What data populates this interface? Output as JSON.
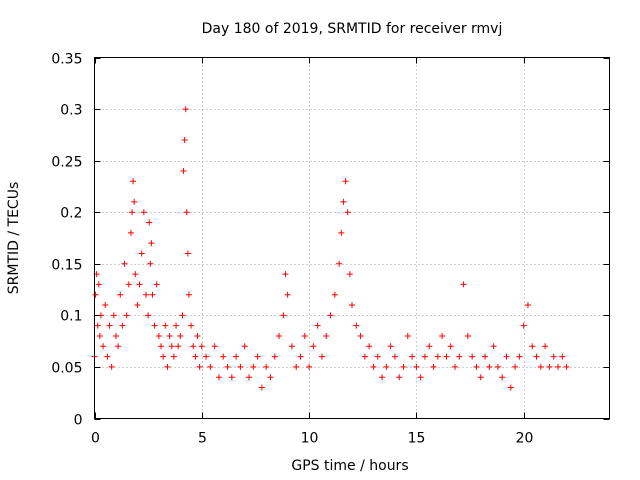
{
  "chart_data": {
    "type": "scatter",
    "title": "Day 180 of 2019, SRMTID for receiver rmvj",
    "xlabel": "GPS time / hours",
    "ylabel": "SRMTID / TECUs",
    "xlim": [
      0,
      24
    ],
    "ylim": [
      0,
      0.35
    ],
    "xticks": [
      0,
      5,
      10,
      15,
      20
    ],
    "xtick_labels": [
      "0",
      "5",
      "10",
      "15",
      "20"
    ],
    "yticks": [
      0,
      0.05,
      0.1,
      0.15,
      0.2,
      0.25,
      0.3,
      0.35
    ],
    "ytick_labels": [
      "0",
      "0.05",
      "0.1",
      "0.15",
      "0.2",
      "0.25",
      "0.3",
      "0.35"
    ],
    "grid": true,
    "marker": "+",
    "marker_color": "#ff0000",
    "series": [
      {
        "name": "SRMTID",
        "x": [
          0.0,
          0.05,
          0.1,
          0.15,
          0.2,
          0.25,
          0.3,
          0.4,
          0.5,
          0.6,
          0.7,
          0.8,
          0.9,
          1.0,
          1.1,
          1.2,
          1.3,
          1.4,
          1.5,
          1.6,
          1.7,
          1.75,
          1.8,
          1.85,
          1.9,
          2.0,
          2.1,
          2.2,
          2.3,
          2.4,
          2.5,
          2.55,
          2.6,
          2.65,
          2.7,
          2.8,
          2.9,
          3.0,
          3.1,
          3.2,
          3.3,
          3.4,
          3.5,
          3.6,
          3.7,
          3.8,
          3.9,
          4.0,
          4.1,
          4.15,
          4.2,
          4.25,
          4.3,
          4.35,
          4.4,
          4.5,
          4.6,
          4.7,
          4.8,
          4.9,
          5.0,
          5.2,
          5.4,
          5.6,
          5.8,
          6.0,
          6.2,
          6.4,
          6.6,
          6.8,
          7.0,
          7.2,
          7.4,
          7.6,
          7.8,
          8.0,
          8.2,
          8.4,
          8.6,
          8.8,
          8.9,
          9.0,
          9.2,
          9.4,
          9.6,
          9.8,
          10.0,
          10.2,
          10.4,
          10.6,
          10.8,
          11.0,
          11.2,
          11.4,
          11.5,
          11.6,
          11.7,
          11.8,
          11.9,
          12.0,
          12.2,
          12.4,
          12.6,
          12.8,
          13.0,
          13.2,
          13.4,
          13.6,
          13.8,
          14.0,
          14.2,
          14.4,
          14.6,
          14.8,
          15.0,
          15.2,
          15.4,
          15.6,
          15.8,
          16.0,
          16.2,
          16.4,
          16.6,
          16.8,
          17.0,
          17.2,
          17.4,
          17.6,
          17.8,
          18.0,
          18.2,
          18.4,
          18.6,
          18.8,
          19.0,
          19.2,
          19.4,
          19.6,
          19.8,
          20.0,
          20.2,
          20.4,
          20.6,
          20.8,
          21.0,
          21.2,
          21.4,
          21.6,
          21.8,
          22.0
        ],
        "y": [
          0.06,
          0.12,
          0.14,
          0.09,
          0.13,
          0.08,
          0.1,
          0.07,
          0.11,
          0.06,
          0.09,
          0.05,
          0.1,
          0.08,
          0.07,
          0.12,
          0.09,
          0.15,
          0.1,
          0.13,
          0.18,
          0.2,
          0.23,
          0.21,
          0.14,
          0.11,
          0.13,
          0.16,
          0.2,
          0.12,
          0.1,
          0.19,
          0.15,
          0.17,
          0.12,
          0.09,
          0.13,
          0.08,
          0.07,
          0.06,
          0.09,
          0.05,
          0.08,
          0.07,
          0.06,
          0.09,
          0.07,
          0.08,
          0.1,
          0.24,
          0.27,
          0.3,
          0.2,
          0.16,
          0.12,
          0.09,
          0.07,
          0.06,
          0.08,
          0.05,
          0.07,
          0.06,
          0.05,
          0.07,
          0.04,
          0.06,
          0.05,
          0.04,
          0.06,
          0.05,
          0.07,
          0.04,
          0.05,
          0.06,
          0.03,
          0.05,
          0.04,
          0.06,
          0.08,
          0.1,
          0.14,
          0.12,
          0.07,
          0.05,
          0.06,
          0.08,
          0.05,
          0.07,
          0.09,
          0.06,
          0.08,
          0.1,
          0.12,
          0.15,
          0.18,
          0.21,
          0.23,
          0.2,
          0.14,
          0.11,
          0.09,
          0.08,
          0.06,
          0.07,
          0.05,
          0.06,
          0.04,
          0.05,
          0.07,
          0.06,
          0.04,
          0.05,
          0.08,
          0.06,
          0.05,
          0.04,
          0.06,
          0.07,
          0.05,
          0.06,
          0.08,
          0.06,
          0.07,
          0.05,
          0.06,
          0.13,
          0.08,
          0.06,
          0.05,
          0.04,
          0.06,
          0.05,
          0.07,
          0.05,
          0.04,
          0.06,
          0.03,
          0.05,
          0.06,
          0.09,
          0.11,
          0.07,
          0.06,
          0.05,
          0.07,
          0.05,
          0.06,
          0.05,
          0.06,
          0.05
        ]
      }
    ]
  }
}
